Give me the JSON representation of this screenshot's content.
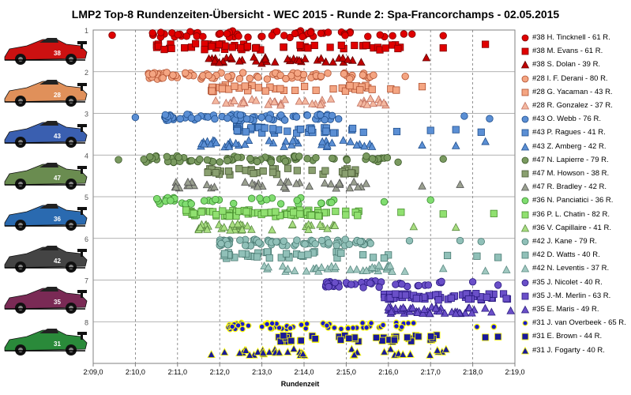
{
  "chart_data": {
    "type": "scatter",
    "title": "LMP2 Top-8 Rundenzeiten-Übersicht - WEC 2015 - Runde 2: Spa-Francorchamps - 02.05.2015",
    "xlabel": "Rundenzeit",
    "ylabel": "",
    "x_ticks": [
      "2:09,0",
      "2:10,0",
      "2:11,0",
      "2:12,0",
      "2:13,0",
      "2:14,0",
      "2:15,0",
      "2:16,0",
      "2:17,0",
      "2:18,0",
      "2:19,0"
    ],
    "x_range_seconds": [
      129,
      139
    ],
    "y_ticks": [
      "1",
      "2",
      "3",
      "4",
      "5",
      "6",
      "7",
      "8"
    ],
    "y_range": [
      1,
      9
    ],
    "grid": true,
    "legend_position": "right",
    "cars": [
      {
        "position": 1,
        "number": "38",
        "color": "#cc1111"
      },
      {
        "position": 2,
        "number": "28",
        "color": "#e0905a"
      },
      {
        "position": 3,
        "number": "43",
        "color": "#3a5fb0"
      },
      {
        "position": 4,
        "number": "47",
        "color": "#6a8c50"
      },
      {
        "position": 5,
        "number": "36",
        "color": "#2a6ab0"
      },
      {
        "position": 6,
        "number": "42",
        "color": "#444444"
      },
      {
        "position": 7,
        "number": "35",
        "color": "#7a2a55"
      },
      {
        "position": 8,
        "number": "31",
        "color": "#2a8a3a"
      }
    ],
    "series": [
      {
        "name": "#38 H. Tincknell - 61 R.",
        "marker": "circle",
        "color": "#e00000",
        "stroke": "#800000",
        "group": 0,
        "row": 0,
        "laps": 61,
        "range": [
          130.4,
          136.6
        ],
        "outliers": [
          129.45,
          136.1,
          137.3
        ]
      },
      {
        "name": "#38 M. Evans - 61 R.",
        "marker": "square",
        "color": "#e00000",
        "stroke": "#800000",
        "group": 0,
        "row": 1,
        "laps": 61,
        "range": [
          130.5,
          136.3
        ],
        "outliers": [
          137.3,
          138.3
        ]
      },
      {
        "name": "#38 S. Dolan - 39 R.",
        "marker": "triangle",
        "color": "#c00000",
        "stroke": "#600000",
        "group": 0,
        "row": 2,
        "laps": 39,
        "range": [
          131.7,
          135.4
        ],
        "outliers": [
          136.9
        ]
      },
      {
        "name": "#28 I. F. Derani - 80 R.",
        "marker": "circle",
        "color": "#f4a582",
        "stroke": "#b05030",
        "group": 1,
        "row": 0,
        "laps": 80,
        "range": [
          130.3,
          135.7
        ],
        "outliers": [
          136.4
        ]
      },
      {
        "name": "#28 G. Yacaman - 43 R.",
        "marker": "square",
        "color": "#f4a582",
        "stroke": "#b05030",
        "group": 1,
        "row": 1,
        "laps": 43,
        "range": [
          131.8,
          136.2
        ],
        "outliers": [
          136.8
        ]
      },
      {
        "name": "#28 R. Gonzalez - 37 R.",
        "marker": "triangle",
        "color": "#f4b8a0",
        "stroke": "#c07060",
        "group": 1,
        "row": 2,
        "laps": 37,
        "range": [
          131.9,
          136.0
        ],
        "outliers": []
      },
      {
        "name": "#43 O. Webb - 76 R.",
        "marker": "circle",
        "color": "#5b8fd4",
        "stroke": "#1f4e8c",
        "group": 2,
        "row": 0,
        "laps": 76,
        "range": [
          130.7,
          135.0
        ],
        "outliers": [
          130.0,
          137.8,
          138.4
        ]
      },
      {
        "name": "#43 P. Ragues - 41 R.",
        "marker": "square",
        "color": "#5b8fd4",
        "stroke": "#1f4e8c",
        "group": 2,
        "row": 1,
        "laps": 41,
        "range": [
          132.4,
          135.6
        ],
        "outliers": [
          136.2,
          137.0,
          137.6,
          138.2
        ]
      },
      {
        "name": "#43 Z. Amberg - 42 R.",
        "marker": "triangle",
        "color": "#5b8fd4",
        "stroke": "#1f4e8c",
        "group": 2,
        "row": 2,
        "laps": 42,
        "range": [
          131.5,
          135.8
        ],
        "outliers": [
          136.8,
          137.6,
          138.3
        ]
      },
      {
        "name": "#47 N. Lapierre - 79 R.",
        "marker": "circle",
        "color": "#7a9a60",
        "stroke": "#3d5a2a",
        "group": 3,
        "row": 0,
        "laps": 79,
        "range": [
          130.2,
          136.5
        ],
        "outliers": [
          129.6,
          137.3
        ]
      },
      {
        "name": "#47 M. Howson - 38 R.",
        "marker": "square",
        "color": "#8aa070",
        "stroke": "#4a5a35",
        "group": 3,
        "row": 1,
        "laps": 38,
        "range": [
          131.7,
          135.4
        ],
        "outliers": []
      },
      {
        "name": "#47 R. Bradley - 42 R.",
        "marker": "triangle",
        "color": "#9aa090",
        "stroke": "#555555",
        "group": 3,
        "row": 2,
        "laps": 42,
        "range": [
          130.9,
          136.0
        ],
        "outliers": [
          136.8,
          137.7
        ]
      },
      {
        "name": "#36 N. Panciatici - 36 R.",
        "marker": "circle",
        "color": "#80dd70",
        "stroke": "#3a8a30",
        "group": 4,
        "row": 0,
        "laps": 36,
        "range": [
          130.5,
          134.8
        ],
        "outliers": [
          135.9,
          137.0
        ]
      },
      {
        "name": "#36 P. L. Chatin - 82 R.",
        "marker": "square",
        "color": "#90e070",
        "stroke": "#4a9030",
        "group": 4,
        "row": 1,
        "laps": 82,
        "range": [
          131.2,
          135.3
        ],
        "outliers": [
          136.3,
          137.3,
          138.5
        ]
      },
      {
        "name": "#36 V. Capillaire - 41 R.",
        "marker": "triangle",
        "color": "#a8dd80",
        "stroke": "#5a8a40",
        "group": 4,
        "row": 2,
        "laps": 41,
        "range": [
          131.5,
          135.4
        ],
        "outliers": [
          136.6,
          137.6
        ]
      },
      {
        "name": "#42 J. Kane - 79 R.",
        "marker": "circle",
        "color": "#90c0b8",
        "stroke": "#4a7a72",
        "group": 5,
        "row": 0,
        "laps": 79,
        "range": [
          132.0,
          135.6
        ],
        "outliers": [
          136.5,
          137.7,
          138.2
        ]
      },
      {
        "name": "#42 D. Watts - 40 R.",
        "marker": "square",
        "color": "#90c0b8",
        "stroke": "#4a7a72",
        "group": 5,
        "row": 1,
        "laps": 40,
        "range": [
          132.1,
          136.3
        ],
        "outliers": [
          137.4,
          138.1,
          138.6
        ]
      },
      {
        "name": "#42 N. Leventis - 37 R.",
        "marker": "triangle",
        "color": "#a0c8c0",
        "stroke": "#5a8a82",
        "group": 5,
        "row": 2,
        "laps": 37,
        "range": [
          133.0,
          136.7
        ],
        "outliers": [
          137.3,
          138.3,
          138.8
        ]
      },
      {
        "name": "#35 J. Nicolet - 40 R.",
        "marker": "circle",
        "color": "#6a4fc8",
        "stroke": "#2a1a80",
        "group": 6,
        "row": 0,
        "laps": 40,
        "range": [
          134.5,
          137.3
        ],
        "outliers": [
          138.0,
          138.6
        ]
      },
      {
        "name": "#35 J.-M. Merlin - 63 R.",
        "marker": "square",
        "color": "#6a4fc8",
        "stroke": "#2a1a80",
        "group": 6,
        "row": 1,
        "laps": 63,
        "range": [
          135.9,
          138.9
        ],
        "outliers": []
      },
      {
        "name": "#35 E. Maris - 49 R.",
        "marker": "triangle",
        "color": "#6a4fc8",
        "stroke": "#2a1a80",
        "group": 6,
        "row": 2,
        "laps": 49,
        "range": [
          136.0,
          138.5
        ],
        "outliers": [
          138.9
        ]
      },
      {
        "name": "#31 J. van Overbeek - 65 R.",
        "marker": "dot",
        "color": "#1a1acc",
        "stroke": "#ffff00",
        "group": 7,
        "row": 0,
        "laps": 65,
        "range": [
          132.2,
          136.6
        ],
        "outliers": [
          138.1,
          138.5
        ]
      },
      {
        "name": "#31 E. Brown - 44 R.",
        "marker": "square",
        "color": "#1a1a99",
        "stroke": "#ffff00",
        "group": 7,
        "row": 1,
        "laps": 44,
        "range": [
          133.4,
          137.2
        ],
        "outliers": [
          138.3,
          138.6
        ]
      },
      {
        "name": "#31 J. Fogarty - 40 R.",
        "marker": "triangle",
        "color": "#1a1a99",
        "stroke": "#ffff00",
        "group": 7,
        "row": 2,
        "laps": 40,
        "range": [
          131.8,
          137.4
        ],
        "outliers": []
      }
    ]
  }
}
